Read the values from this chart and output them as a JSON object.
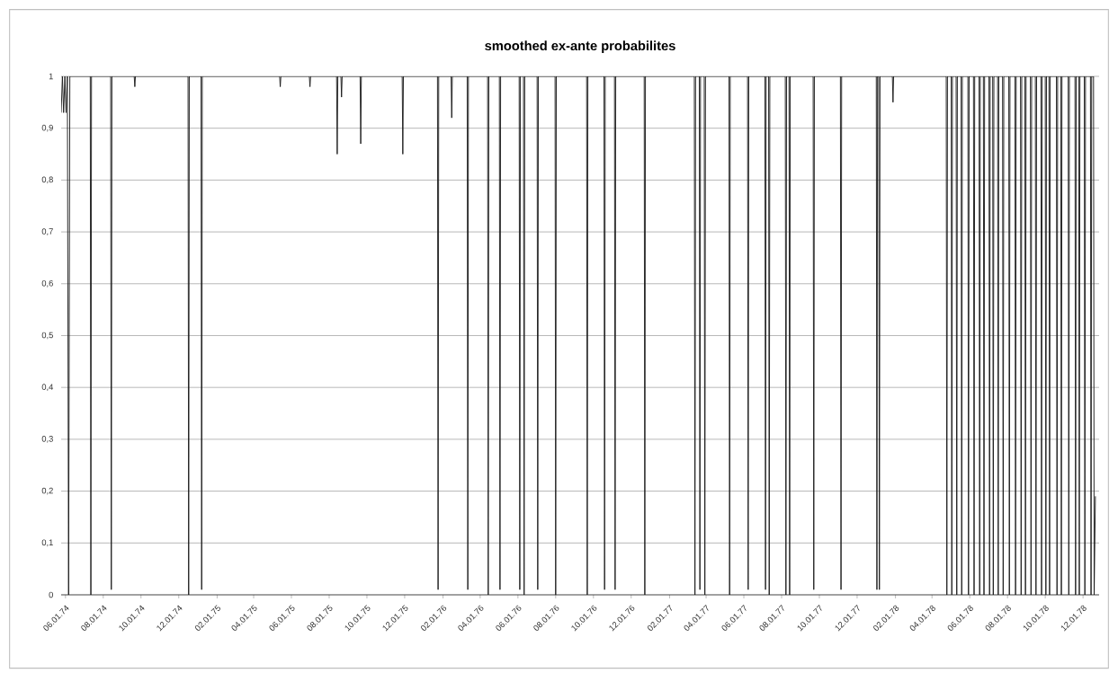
{
  "chart_data": {
    "type": "line",
    "title": "smoothed ex-ante probabilites",
    "color": "#1a1a1a",
    "grid": "y",
    "xlim": [
      "1974-05-25",
      "1978-12-27"
    ],
    "ylim": [
      0,
      1
    ],
    "xticks": [
      {
        "value": "1974-06-01",
        "label": "06.01.74"
      },
      {
        "value": "1974-08-01",
        "label": "08.01.74"
      },
      {
        "value": "1974-10-01",
        "label": "10.01.74"
      },
      {
        "value": "1974-12-01",
        "label": "12.01.74"
      },
      {
        "value": "1975-02-01",
        "label": "02.01.75"
      },
      {
        "value": "1975-04-01",
        "label": "04.01.75"
      },
      {
        "value": "1975-06-01",
        "label": "06.01.75"
      },
      {
        "value": "1975-08-01",
        "label": "08.01.75"
      },
      {
        "value": "1975-10-01",
        "label": "10.01.75"
      },
      {
        "value": "1975-12-01",
        "label": "12.01.75"
      },
      {
        "value": "1976-02-01",
        "label": "02.01.76"
      },
      {
        "value": "1976-04-01",
        "label": "04.01.76"
      },
      {
        "value": "1976-06-01",
        "label": "06.01.76"
      },
      {
        "value": "1976-08-01",
        "label": "08.01.76"
      },
      {
        "value": "1976-10-01",
        "label": "10.01.76"
      },
      {
        "value": "1976-12-01",
        "label": "12.01.76"
      },
      {
        "value": "1977-02-01",
        "label": "02.01.77"
      },
      {
        "value": "1977-04-01",
        "label": "04.01.77"
      },
      {
        "value": "1977-06-01",
        "label": "06.01.77"
      },
      {
        "value": "1977-08-01",
        "label": "08.01.77"
      },
      {
        "value": "1977-10-01",
        "label": "10.01.77"
      },
      {
        "value": "1977-12-01",
        "label": "12.01.77"
      },
      {
        "value": "1978-02-01",
        "label": "02.01.78"
      },
      {
        "value": "1978-04-01",
        "label": "04.01.78"
      },
      {
        "value": "1978-06-01",
        "label": "06.01.78"
      },
      {
        "value": "1978-08-01",
        "label": "08.01.78"
      },
      {
        "value": "1978-10-01",
        "label": "10.01.78"
      },
      {
        "value": "1978-12-01",
        "label": "12.01.78"
      }
    ],
    "yticks": [
      0,
      {
        "value": 0.1,
        "label": "0,1"
      },
      {
        "value": 0.2,
        "label": "0,2"
      },
      {
        "value": 0.3,
        "label": "0,3"
      },
      {
        "value": 0.4,
        "label": "0,4"
      },
      {
        "value": 0.5,
        "label": "0,5"
      },
      {
        "value": 0.6,
        "label": "0,6"
      },
      {
        "value": 0.7,
        "label": "0,7"
      },
      {
        "value": 0.8,
        "label": "0,8"
      },
      {
        "value": 0.9,
        "label": "0,9"
      },
      1
    ],
    "x": [
      "1974-05-25",
      "1974-05-27",
      "1974-05-29",
      "1974-05-31",
      "1974-06-02",
      "1974-06-04",
      "1974-06-06",
      "1974-06-08",
      "1974-07-11",
      "1974-07-12",
      "1974-07-13",
      "1974-08-13",
      "1974-08-14",
      "1974-08-15",
      "1974-09-20",
      "1974-09-21",
      "1974-09-22",
      "1974-12-16",
      "1974-12-17",
      "1974-12-18",
      "1975-01-06",
      "1975-01-07",
      "1975-01-08",
      "1975-05-13",
      "1975-05-14",
      "1975-05-15",
      "1975-06-30",
      "1975-07-01",
      "1975-07-02",
      "1975-08-13",
      "1975-08-14",
      "1975-08-15",
      "1975-08-20",
      "1975-08-21",
      "1975-08-22",
      "1975-09-20",
      "1975-09-21",
      "1975-09-22",
      "1975-11-27",
      "1975-11-28",
      "1975-11-29",
      "1976-01-23",
      "1976-01-24",
      "1976-01-25",
      "1976-02-14",
      "1976-02-15",
      "1976-02-16",
      "1976-03-11",
      "1976-03-12",
      "1976-03-13",
      "1976-04-13",
      "1976-04-14",
      "1976-04-15",
      "1976-05-02",
      "1976-05-03",
      "1976-05-04",
      "1976-06-03",
      "1976-06-04",
      "1976-06-05",
      "1976-06-10",
      "1976-06-11",
      "1976-06-12",
      "1976-07-02",
      "1976-07-03",
      "1976-07-04",
      "1976-07-31",
      "1976-08-01",
      "1976-08-02",
      "1976-09-20",
      "1976-09-21",
      "1976-09-22",
      "1976-10-18",
      "1976-10-19",
      "1976-10-20",
      "1976-11-04",
      "1976-11-05",
      "1976-11-06",
      "1976-12-22",
      "1976-12-23",
      "1976-12-24",
      "1977-03-13",
      "1977-03-14",
      "1977-03-15",
      "1977-03-21",
      "1977-03-22",
      "1977-03-23",
      "1977-03-29",
      "1977-03-30",
      "1977-03-31",
      "1977-05-08",
      "1977-05-09",
      "1977-05-10",
      "1977-06-07",
      "1977-06-08",
      "1977-06-09",
      "1977-07-05",
      "1977-07-06",
      "1977-07-07",
      "1977-07-11",
      "1977-07-12",
      "1977-07-13",
      "1977-08-07",
      "1977-08-08",
      "1977-08-09",
      "1977-08-13",
      "1977-08-14",
      "1977-08-15",
      "1977-09-21",
      "1977-09-22",
      "1977-09-23",
      "1977-11-04",
      "1977-11-05",
      "1977-11-06",
      "1978-01-01",
      "1978-01-02",
      "1978-01-03",
      "1978-01-05",
      "1978-01-06",
      "1978-01-07",
      "1978-01-27",
      "1978-01-28",
      "1978-01-29",
      "1978-04-24",
      "1978-04-25",
      "1978-04-26",
      "1978-05-02",
      "1978-05-03",
      "1978-05-04",
      "1978-05-10",
      "1978-05-11",
      "1978-05-12",
      "1978-05-18",
      "1978-05-19",
      "1978-05-20",
      "1978-05-29",
      "1978-05-30",
      "1978-05-31",
      "1978-06-07",
      "1978-06-08",
      "1978-06-09",
      "1978-06-16",
      "1978-06-17",
      "1978-06-18",
      "1978-06-23",
      "1978-06-24",
      "1978-06-25",
      "1978-07-02",
      "1978-07-03",
      "1978-07-04",
      "1978-07-08",
      "1978-07-09",
      "1978-07-10",
      "1978-07-16",
      "1978-07-17",
      "1978-07-18",
      "1978-07-24",
      "1978-07-25",
      "1978-07-26",
      "1978-08-03",
      "1978-08-04",
      "1978-08-05",
      "1978-08-13",
      "1978-08-14",
      "1978-08-15",
      "1978-08-22",
      "1978-08-23",
      "1978-08-24",
      "1978-08-29",
      "1978-08-30",
      "1978-08-31",
      "1978-09-07",
      "1978-09-08",
      "1978-09-09",
      "1978-09-15",
      "1978-09-16",
      "1978-09-17",
      "1978-09-24",
      "1978-09-25",
      "1978-09-26",
      "1978-10-01",
      "1978-10-02",
      "1978-10-03",
      "1978-10-07",
      "1978-10-08",
      "1978-10-09",
      "1978-10-19",
      "1978-10-20",
      "1978-10-21",
      "1978-10-26",
      "1978-10-27",
      "1978-10-28",
      "1978-11-07",
      "1978-11-08",
      "1978-11-09",
      "1978-11-18",
      "1978-11-19",
      "1978-11-20",
      "1978-11-24",
      "1978-11-25",
      "1978-11-26",
      "1978-12-03",
      "1978-12-04",
      "1978-12-05",
      "1978-12-13",
      "1978-12-14",
      "1978-12-15",
      "1978-12-18",
      "1978-12-19",
      "1978-12-21"
    ],
    "values": [
      0.93,
      1,
      0.93,
      1,
      0.93,
      1,
      0,
      1,
      1,
      0,
      1,
      1,
      0.01,
      1,
      1,
      0.98,
      1,
      1,
      0,
      1,
      1,
      0.01,
      1,
      1,
      0.98,
      1,
      1,
      0.98,
      1,
      1,
      0.85,
      1,
      1,
      0.96,
      1,
      1,
      0.87,
      1,
      1,
      0.85,
      1,
      1,
      0.01,
      1,
      1,
      0.92,
      1,
      1,
      0.01,
      1,
      1,
      0,
      1,
      1,
      0.01,
      1,
      1,
      0.01,
      1,
      1,
      0,
      1,
      1,
      0.01,
      1,
      1,
      0,
      1,
      1,
      0,
      1,
      1,
      0.01,
      1,
      1,
      0.01,
      1,
      1,
      0,
      1,
      1,
      0,
      1,
      1,
      0.01,
      1,
      1,
      0,
      1,
      1,
      0,
      1,
      1,
      0.01,
      1,
      1,
      0.01,
      1,
      1,
      0,
      1,
      1,
      0,
      1,
      1,
      0,
      1,
      1,
      0.01,
      1,
      1,
      0.01,
      1,
      1,
      0.01,
      1,
      1,
      0.01,
      1,
      1,
      0.95,
      1,
      1,
      0,
      1,
      1,
      0,
      1,
      1,
      0,
      1,
      1,
      0,
      1,
      1,
      0,
      1,
      1,
      0,
      1,
      1,
      0,
      1,
      1,
      0,
      1,
      1,
      0,
      1,
      1,
      0,
      1,
      1,
      0,
      1,
      1,
      0,
      1,
      1,
      0,
      1,
      1,
      0,
      1,
      1,
      0,
      1,
      1,
      0,
      1,
      1,
      0,
      1,
      1,
      0,
      1,
      1,
      0,
      1,
      1,
      0,
      1,
      1,
      0,
      1,
      1,
      0,
      1,
      1,
      0,
      1,
      1,
      0,
      1,
      1,
      0,
      1,
      1,
      0,
      1,
      1,
      0,
      1,
      1,
      0,
      1,
      1,
      0,
      0.19
    ]
  }
}
